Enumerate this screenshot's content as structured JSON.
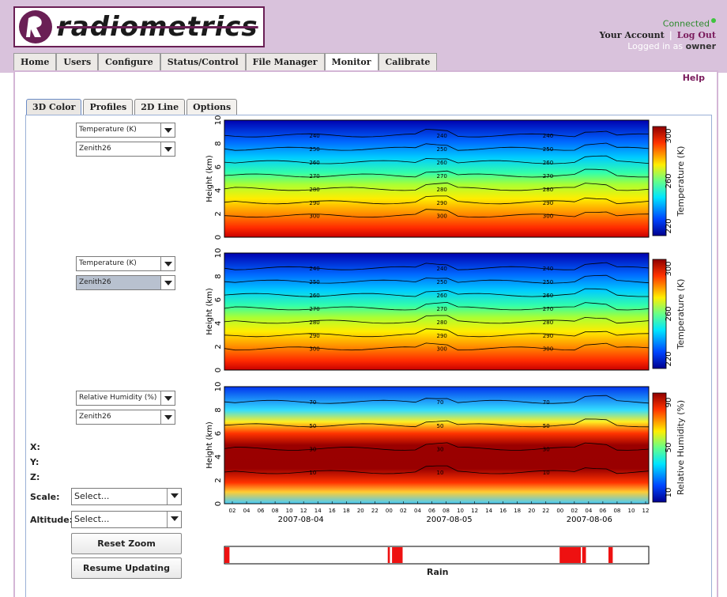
{
  "brand": {
    "logo_text": "radiometrics"
  },
  "status": {
    "connected": "Connected",
    "your_account": "Your Account",
    "separator": "|",
    "log_out": "Log Out",
    "logged_in_as": "Logged in as",
    "user": "owner"
  },
  "nav": {
    "tabs": [
      "Home",
      "Users",
      "Configure",
      "Status/Control",
      "File Manager",
      "Monitor",
      "Calibrate"
    ],
    "active": "Monitor"
  },
  "help": "Help",
  "subtabs": {
    "tabs": [
      "3D Color",
      "Profiles",
      "2D Line",
      "Options"
    ],
    "active": "3D Color"
  },
  "plots": [
    {
      "variable": "Temperature (K)",
      "angle": "Zenith26",
      "ylabel": "Height (km)",
      "cbar_label": "Temperature (K)",
      "cbar_ticks": [
        "300",
        "260",
        "220"
      ],
      "y_ticks": [
        "10",
        "8",
        "6",
        "4",
        "2",
        "0"
      ],
      "contours": [
        "240",
        "250",
        "260",
        "270",
        "280",
        "290",
        "300"
      ]
    },
    {
      "variable": "Temperature (K)",
      "angle": "Zenith26",
      "ylabel": "Height (km)",
      "cbar_label": "Temperature (K)",
      "cbar_ticks": [
        "300",
        "260",
        "220"
      ],
      "y_ticks": [
        "10",
        "8",
        "6",
        "4",
        "2",
        "0"
      ],
      "contours": [
        "240",
        "250",
        "260",
        "270",
        "280",
        "290",
        "300"
      ]
    },
    {
      "variable": "Relative Humidity (%)",
      "angle": "Zenith26",
      "ylabel": "Height (km)",
      "cbar_label": "Relative Humidity (%)",
      "cbar_ticks": [
        "90",
        "50",
        "10"
      ],
      "y_ticks": [
        "10",
        "8",
        "6",
        "4",
        "2",
        "0"
      ],
      "contours": [
        "70",
        "50",
        "30",
        "10"
      ]
    }
  ],
  "x_hours": [
    "02",
    "04",
    "06",
    "08",
    "10",
    "12",
    "14",
    "16",
    "18",
    "20",
    "22",
    "00",
    "02",
    "04",
    "06",
    "08",
    "10",
    "12",
    "14",
    "16",
    "18",
    "20",
    "22",
    "00",
    "02",
    "04",
    "06",
    "08",
    "10",
    "12"
  ],
  "x_dates": [
    "2007-08-04",
    "2007-08-05",
    "2007-08-06"
  ],
  "readout": {
    "x": "X:",
    "y": "Y:",
    "z": "Z:"
  },
  "controls": {
    "scale_label": "Scale:",
    "scale_value": "Select...",
    "altitude_label": "Altitude:",
    "altitude_value": "Select...",
    "reset_zoom": "Reset Zoom",
    "resume_updating": "Resume Updating"
  },
  "rain": {
    "label": "Rain",
    "color": "#ee1111"
  }
}
